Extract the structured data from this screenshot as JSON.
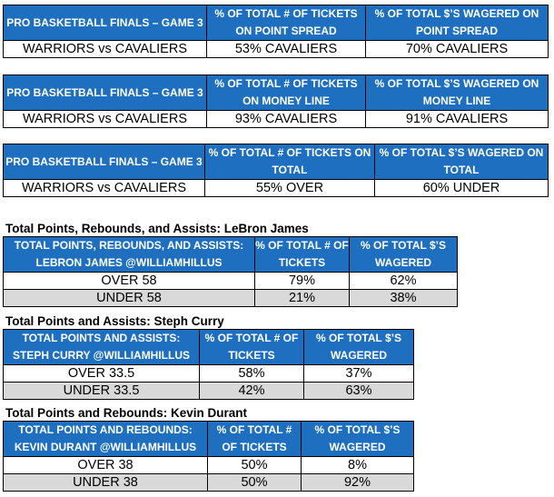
{
  "tables": [
    {
      "header": [
        "PRO BASKETBALL FINALS – GAME 3",
        "% OF TOTAL # OF TICKETS ON POINT SPREAD",
        "% OF TOTAL $’S WAGERED ON POINT SPREAD"
      ],
      "rows": [
        [
          "WARRIORS vs CAVALIERS",
          "53% CAVALIERS",
          "70% CAVALIERS"
        ]
      ]
    },
    {
      "header": [
        "PRO BASKETBALL FINALS – GAME 3",
        "% OF TOTAL # OF TICKETS ON MONEY LINE",
        "% OF TOTAL $’S WAGERED ON MONEY LINE"
      ],
      "rows": [
        [
          "WARRIORS vs CAVALIERS",
          "93% CAVALIERS",
          "91% CAVALIERS"
        ]
      ]
    },
    {
      "header": [
        "PRO BASKETBALL FINALS – GAME 3",
        "% OF TOTAL # OF TICKETS ON TOTAL",
        "% OF TOTAL $’S WAGERED ON TOTAL"
      ],
      "rows": [
        [
          "WARRIORS vs CAVALIERS",
          "55% OVER",
          "60% UNDER"
        ]
      ]
    },
    {
      "title": "Total Points, Rebounds, and Assists: LeBron James",
      "header": [
        "TOTAL POINTS, REBOUNDS, AND ASSISTS: LEBRON JAMES @WILLIAMHILLUS",
        "% OF TOTAL # OF TICKETS",
        "% OF TOTAL $’S WAGERED"
      ],
      "rows": [
        [
          "OVER 58",
          "79%",
          "62%"
        ],
        [
          "UNDER 58",
          "21%",
          "38%"
        ]
      ]
    },
    {
      "title": "Total Points and Assists: Steph Curry",
      "header": [
        "TOTAL POINTS AND ASSISTS: STEPH CURRY @WILLIAMHILLUS",
        "% OF TOTAL # OF TICKETS",
        "% OF TOTAL $’S WAGERED"
      ],
      "rows": [
        [
          "OVER 33.5",
          "58%",
          "37%"
        ],
        [
          "UNDER 33.5",
          "42%",
          "63%"
        ]
      ]
    },
    {
      "title": "Total Points and Rebounds: Kevin Durant",
      "header": [
        "TOTAL POINTS AND REBOUNDS: KEVIN DURANT @WILLIAMHILLUS",
        "% OF TOTAL # OF TICKETS",
        "% OF TOTAL $’S WAGERED"
      ],
      "rows": [
        [
          "OVER 38",
          "50%",
          "8%"
        ],
        [
          "UNDER 38",
          "50%",
          "92%"
        ]
      ]
    }
  ]
}
